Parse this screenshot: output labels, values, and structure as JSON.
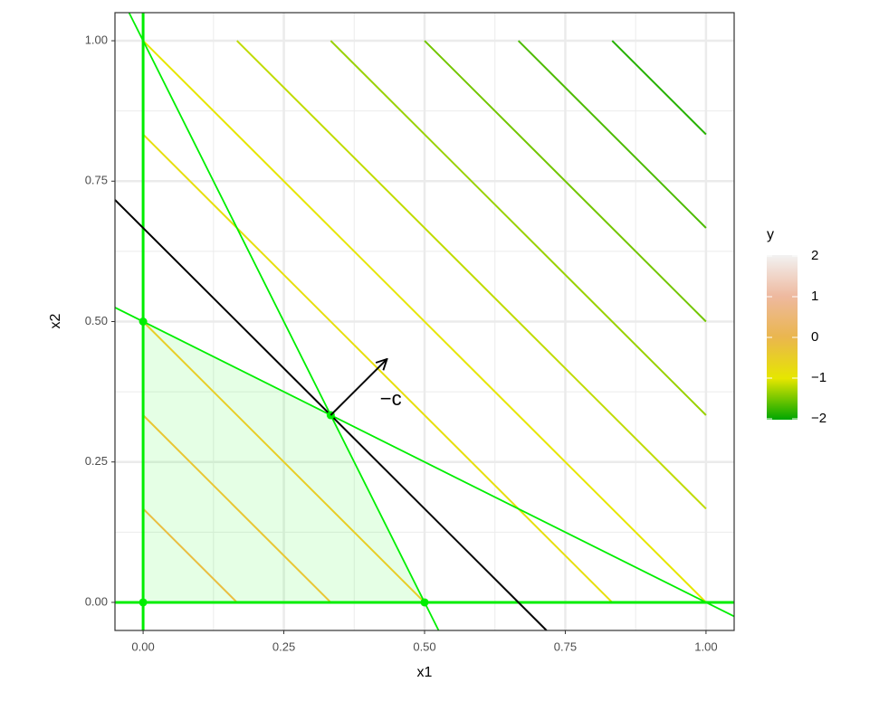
{
  "chart_data": {
    "type": "contour",
    "xlabel": "x1",
    "ylabel": "x2",
    "xlim": [
      -0.05,
      1.05
    ],
    "ylim": [
      -0.05,
      1.05
    ],
    "xticks": [
      {
        "value": 0,
        "label": "0.00"
      },
      {
        "value": 0.25,
        "label": "0.25"
      },
      {
        "value": 0.5,
        "label": "0.50"
      },
      {
        "value": 0.75,
        "label": "0.75"
      },
      {
        "value": 1,
        "label": "1.00"
      }
    ],
    "yticks": [
      {
        "value": 0,
        "label": "0.00"
      },
      {
        "value": 0.25,
        "label": "0.25"
      },
      {
        "value": 0.5,
        "label": "0.50"
      },
      {
        "value": 0.75,
        "label": "0.75"
      },
      {
        "value": 1,
        "label": "1.00"
      }
    ],
    "grid": true,
    "contours": [
      {
        "level": -0.1667,
        "x": [
          0,
          0.1667
        ],
        "values": [
          0.1667,
          0
        ]
      },
      {
        "level": -0.3333,
        "x": [
          0,
          0.3333
        ],
        "values": [
          0.3333,
          0
        ]
      },
      {
        "level": -0.5,
        "x": [
          0,
          0.5
        ],
        "values": [
          0.5,
          0
        ]
      },
      {
        "level": -0.8333,
        "x": [
          0,
          0.8333
        ],
        "values": [
          0.8333,
          0
        ]
      },
      {
        "level": -1,
        "x": [
          0,
          1
        ],
        "values": [
          1,
          0
        ]
      },
      {
        "level": -1.1667,
        "x": [
          0.1667,
          1
        ],
        "values": [
          1,
          0.1667
        ]
      },
      {
        "level": -1.3333,
        "x": [
          0.3333,
          1
        ],
        "values": [
          1,
          0.3333
        ]
      },
      {
        "level": -1.5,
        "x": [
          0.5,
          1
        ],
        "values": [
          1,
          0.5
        ]
      },
      {
        "level": -1.6667,
        "x": [
          0.6667,
          1
        ],
        "values": [
          1,
          0.6667
        ]
      },
      {
        "level": -1.8333,
        "x": [
          0.8333,
          1
        ],
        "values": [
          1,
          0.8333
        ]
      }
    ],
    "constraint_color": "#00ee00",
    "constraints": [
      {
        "x": [
          0,
          0
        ],
        "values": [
          -0.05,
          1.05
        ]
      },
      {
        "x": [
          -0.05,
          1.05
        ],
        "values": [
          0,
          0
        ]
      },
      {
        "x": [
          -0.025,
          0.525
        ],
        "values": [
          1.05,
          -0.05
        ]
      },
      {
        "x": [
          -0.05,
          1.05
        ],
        "values": [
          0.525,
          -0.025
        ]
      }
    ],
    "objective_line": {
      "color": "#000000",
      "x": [
        -0.05,
        0.7167
      ],
      "values": [
        0.7167,
        -0.05
      ]
    },
    "feasible_region": {
      "color": "#00ff00",
      "x": [
        0,
        0,
        0.3333,
        0.5
      ],
      "values": [
        0,
        0.5,
        0.3333,
        0
      ]
    },
    "vertices": {
      "color": "#00ee00",
      "x": [
        0,
        0,
        0.3333,
        0.5
      ],
      "values": [
        0,
        0.5,
        0.3333,
        0
      ]
    },
    "arrow": {
      "color": "#000000",
      "x": [
        0.3333,
        0.4333
      ],
      "values": [
        0.3333,
        0.4333
      ]
    },
    "annotation": {
      "text": "−c",
      "x": 0.44,
      "y": 0.36
    },
    "colorbar": {
      "title": "y",
      "limits": [
        -2,
        2
      ],
      "colors": [
        "#00A600",
        "#E6E600",
        "#EAB64E",
        "#EEB99F",
        "#F2F2F2"
      ],
      "ticks": [
        2,
        1,
        0,
        {
          "value": -1,
          "label": "−1"
        },
        {
          "value": -2,
          "label": "−2"
        }
      ]
    }
  }
}
